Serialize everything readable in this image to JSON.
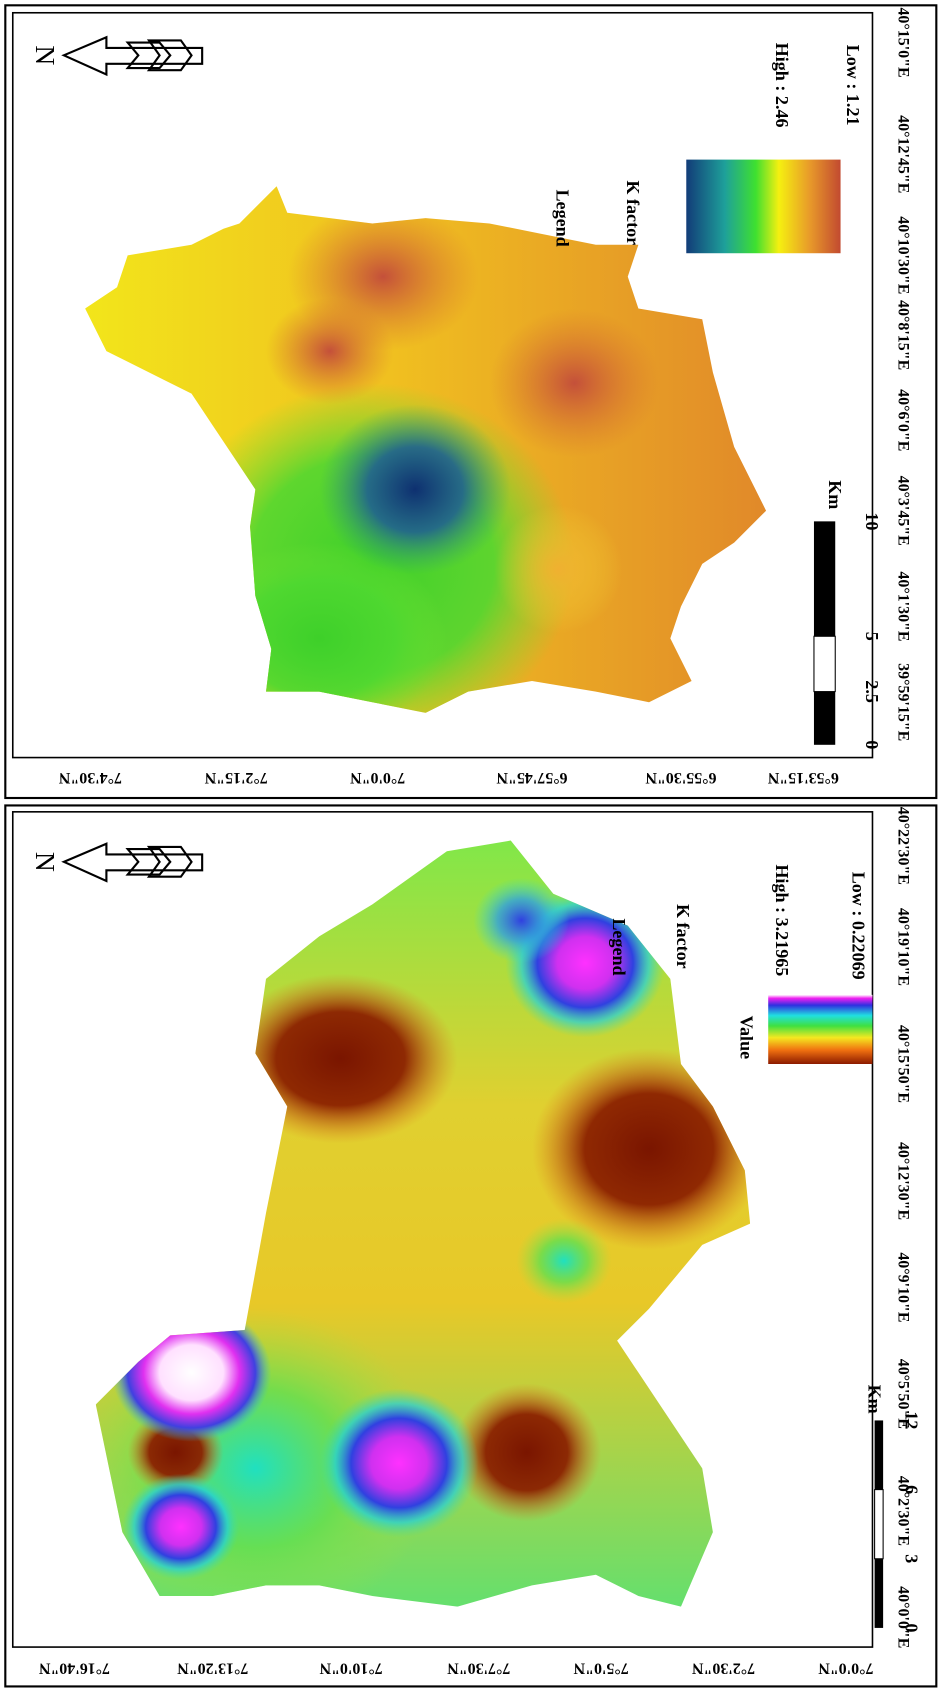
{
  "maps": [
    {
      "north": "N",
      "legend_title": "Legend",
      "legend_subtitle": "K factor",
      "high": "High : 2.46",
      "low": "Low : 1.21",
      "scale_labels": [
        "0",
        "2.5",
        "5",
        "10"
      ],
      "scale_unit": "Km",
      "longitude_labels": [
        "40°15'0\"E",
        "40°12'45\"E",
        "40°10'30\"E",
        "40°8'15\"E",
        "40°6'0\"E",
        "40°3'45\"E",
        "40°1'30\"E",
        "39°59'15\"E"
      ],
      "latitude_labels": [
        "7°4'30\"N",
        "7°2'15\"N",
        "7°0'0\"N",
        "6°57'45\"N",
        "6°55'30\"N",
        "6°53'15\"N"
      ]
    },
    {
      "north": "N",
      "legend_title": "Legend",
      "legend_subtitle": "K factor",
      "value_label": "Value",
      "high": "High : 3.21965",
      "low": "Low : 0.22069",
      "scale_labels": [
        "0",
        "3",
        "6",
        "12"
      ],
      "scale_unit": "Km",
      "longitude_labels": [
        "40°22'30\"E",
        "40°19'10\"E",
        "40°15'50\"E",
        "40°12'30\"E",
        "40°9'10\"E",
        "40°5'50\"E",
        "40°2'30\"E",
        "40°0'0\"E"
      ],
      "latitude_labels": [
        "7°16'40\"N",
        "7°13'20\"N",
        "7°10'0\"N",
        "7°7'30\"N",
        "7°5'0\"N",
        "7°2'30\"N",
        "7°0'0\"N"
      ]
    }
  ]
}
